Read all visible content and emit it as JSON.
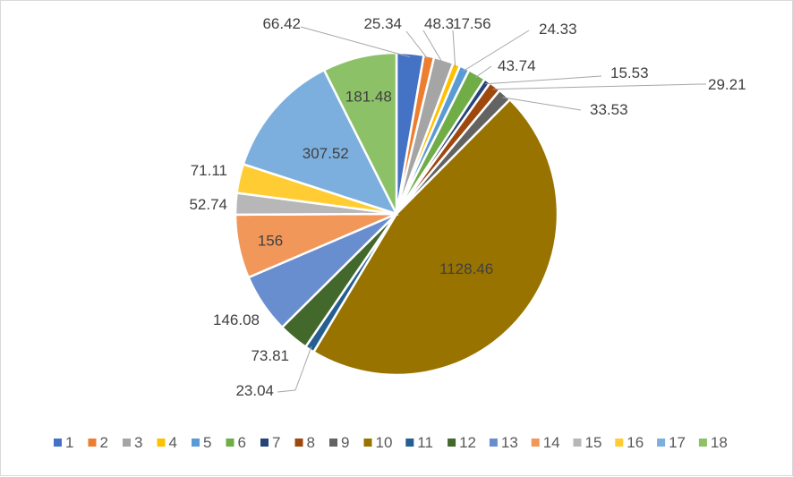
{
  "chart_data": {
    "type": "pie",
    "title": "",
    "categories": [
      "1",
      "2",
      "3",
      "4",
      "5",
      "6",
      "7",
      "8",
      "9",
      "10",
      "11",
      "12",
      "13",
      "14",
      "15",
      "16",
      "17",
      "18"
    ],
    "values": [
      66.42,
      25.34,
      48.3,
      17.56,
      24.33,
      43.74,
      15.53,
      29.21,
      33.53,
      1128.46,
      23.04,
      73.81,
      146.08,
      156,
      52.74,
      71.11,
      307.52,
      181.48
    ],
    "data_labels": [
      "66.42",
      "25.34",
      "48.3",
      "17.56",
      "24.33",
      "43.74",
      "15.53",
      "29.21",
      "33.53",
      "1128.46",
      "23.04",
      "73.81",
      "146.08",
      "156",
      "52.74",
      "71.11",
      "307.52",
      "181.48"
    ],
    "colors": [
      "#4472C4",
      "#ED7D31",
      "#A5A5A5",
      "#FFC000",
      "#5B9BD5",
      "#70AD47",
      "#264478",
      "#9E480E",
      "#636363",
      "#997300",
      "#255E91",
      "#43682B",
      "#698ED0",
      "#F1975A",
      "#B7B7B7",
      "#FFCD33",
      "#7CAFDD",
      "#8CC168"
    ],
    "legend": {
      "position": "bottom",
      "labels": [
        "1",
        "2",
        "3",
        "4",
        "5",
        "6",
        "7",
        "8",
        "9",
        "10",
        "11",
        "12",
        "13",
        "14",
        "15",
        "16",
        "17",
        "18"
      ]
    },
    "start_angle": "12 o'clock",
    "direction": "clockwise"
  }
}
